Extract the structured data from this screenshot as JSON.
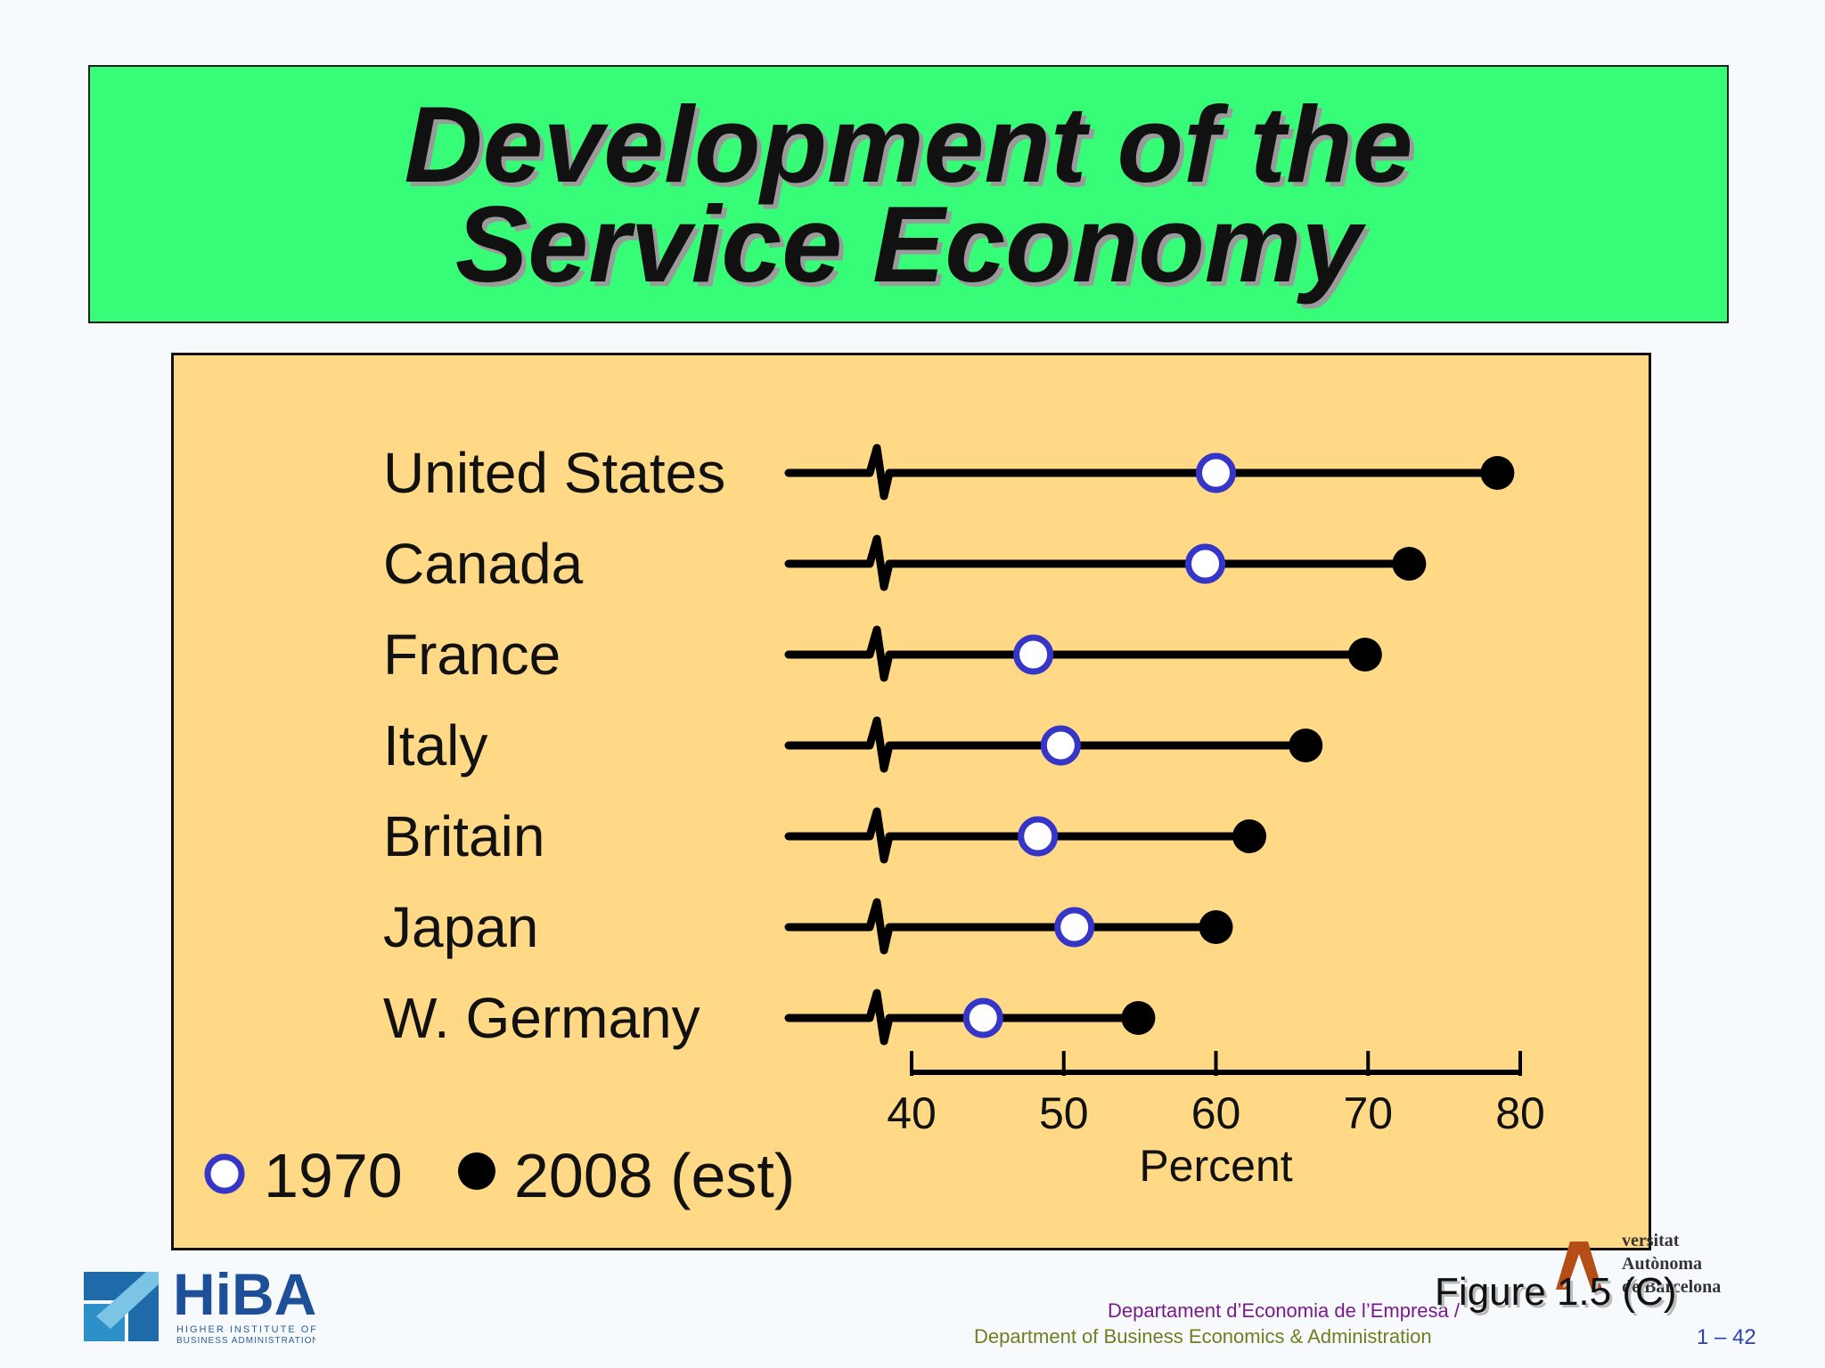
{
  "title": {
    "line1": "Development of the",
    "line2": "Service Economy"
  },
  "chart_data": {
    "type": "dumbbell",
    "categories": [
      "United States",
      "Canada",
      "France",
      "Italy",
      "Britain",
      "Japan",
      "W. Germany"
    ],
    "series": [
      {
        "name": "1970",
        "values": [
          60,
          59.3,
          48,
          49.8,
          48.3,
          50.7,
          44.7
        ]
      },
      {
        "name": "2008 (est)",
        "values": [
          78.5,
          72.7,
          69.8,
          65.9,
          62.2,
          60,
          54.9
        ]
      }
    ],
    "xlim": [
      40,
      80
    ],
    "xticks": [
      "40",
      "50",
      "60",
      "70",
      "80"
    ],
    "xlabel": "Percent",
    "axis_break": true,
    "legend_position": "bottom-left",
    "colors": {
      "start_marker": "#3535c8",
      "end_marker": "#000000",
      "panel": "#ffd986"
    }
  },
  "footer": {
    "dept_catalan": "Departament d’Economia de l’Empresa /",
    "dept_english": "Department of Business Economics & Administration",
    "figure": "Figure 1.5 (C)",
    "page": "1 – 42",
    "logo_left": {
      "mark": "HiBA",
      "sub1": "HIGHER INSTITUTE OF",
      "sub2": "BUSINESS ADMINISTRATION"
    },
    "logo_right": {
      "line1": "versitat",
      "line2": "Autònoma",
      "line3": "de Barcelona"
    }
  }
}
